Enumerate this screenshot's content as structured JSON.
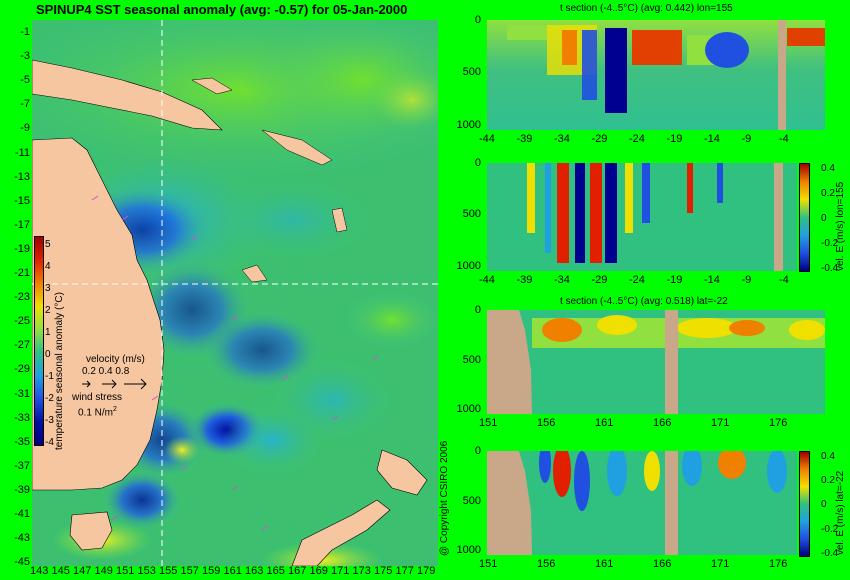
{
  "title": "SPINUP4 SST seasonal anomaly (avg: -0.57) for 05-Jan-2000",
  "copyright": "@ Copyright CSIRO 2006",
  "colors": {
    "background": "#00ff00",
    "land": "#f5c6a0",
    "grey_land": "#c8a888",
    "cross": "#ffffff",
    "vectors": "#d050d0"
  },
  "map": {
    "y_ticks": [
      "-1",
      "-3",
      "-5",
      "-7",
      "-9",
      "-11",
      "-13",
      "-15",
      "-17",
      "-19",
      "-21",
      "-23",
      "-25",
      "-27",
      "-29",
      "-31",
      "-33",
      "-35",
      "-37",
      "-39",
      "-41",
      "-43",
      "-45"
    ],
    "x_ticks": [
      "143",
      "145",
      "147",
      "149",
      "151",
      "153",
      "155",
      "157",
      "159",
      "161",
      "163",
      "165",
      "167",
      "169",
      "171",
      "173",
      "175",
      "177",
      "179"
    ],
    "colorbar_label": "temperature seasonal anomaly (°C)",
    "colorbar_ticks": [
      "5",
      "4",
      "3",
      "2",
      "1",
      "0",
      "-1",
      "-2",
      "-3",
      "-4"
    ],
    "velocity_label": "velocity (m/s)",
    "velocity_scale": "0.2 0.4 0.8",
    "wind_label": "wind stress",
    "wind_scale": "0.1 N/m",
    "wind_unit_sup": "2"
  },
  "panels": [
    {
      "title": "t section (-4..5°C) (avg: 0.442) lon=155",
      "y_ticks": [
        "0",
        "500",
        "1000"
      ],
      "x_ticks": [
        "-44",
        "-39",
        "-34",
        "-29",
        "-24",
        "-19",
        "-14",
        "-9",
        "-4"
      ]
    },
    {
      "title": "",
      "y_ticks": [
        "0",
        "500",
        "1000"
      ],
      "x_ticks": [
        "-44",
        "-39",
        "-34",
        "-29",
        "-24",
        "-19",
        "-14",
        "-9",
        "-4"
      ],
      "cbar_label": "vel. E (m/s) lon=155",
      "cbar_ticks": [
        "0.4",
        "0.2",
        "0",
        "-0.2",
        "-0.4"
      ]
    },
    {
      "title": "t section (-4..5°C) (avg: 0.518) lat=-22",
      "y_ticks": [
        "0",
        "500",
        "1000"
      ],
      "x_ticks": [
        "151",
        "156",
        "161",
        "166",
        "171",
        "176"
      ]
    },
    {
      "title": "",
      "y_ticks": [
        "0",
        "500",
        "1000"
      ],
      "x_ticks": [
        "151",
        "156",
        "161",
        "166",
        "171",
        "176"
      ],
      "cbar_label": "vel. E (m/s) lat=-22",
      "cbar_ticks": [
        "0.4",
        "0.2",
        "0",
        "-0.2",
        "-0.4"
      ]
    }
  ],
  "chart_data": [
    {
      "type": "heatmap",
      "title": "SPINUP4 SST seasonal anomaly (avg: -0.57) for 05-Jan-2000",
      "x_label": "",
      "y_label": "",
      "x_range": [
        143,
        179
      ],
      "y_range": [
        -45,
        -1
      ],
      "colorbar": "temperature seasonal anomaly (°C)",
      "colorbar_range": [
        -4,
        5
      ],
      "section_cross": {
        "lon": 155,
        "lat": -22
      }
    },
    {
      "type": "heatmap",
      "title": "t section (-4..5°C) (avg: 0.442) lon=155",
      "x_range": [
        -45,
        0
      ],
      "y_range": [
        1050,
        0
      ]
    },
    {
      "type": "heatmap",
      "title": "",
      "x_range": [
        -45,
        0
      ],
      "y_range": [
        1050,
        0
      ],
      "colorbar": "vel. E (m/s) lon=155",
      "colorbar_range": [
        -0.4,
        0.4
      ]
    },
    {
      "type": "heatmap",
      "title": "t section (-4..5°C) (avg: 0.518) lat=-22",
      "x_range": [
        150,
        180
      ],
      "y_range": [
        1050,
        0
      ]
    },
    {
      "type": "heatmap",
      "title": "",
      "x_range": [
        150,
        180
      ],
      "y_range": [
        1050,
        0
      ],
      "colorbar": "vel. E (m/s) lat=-22",
      "colorbar_range": [
        -0.4,
        0.4
      ]
    }
  ]
}
